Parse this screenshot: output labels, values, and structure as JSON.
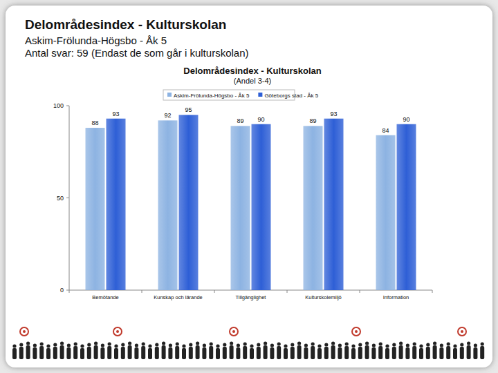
{
  "header": {
    "title": "Delområdesindex - Kulturskolan",
    "lines": [
      "Askim-Frölunda-Högsbo - Åk 5",
      "Antal svar: 59 (Endast de som går i kulturskolan)"
    ]
  },
  "chart_data": {
    "type": "bar",
    "title": "Delområdesindex - Kulturskolan",
    "subtitle": "(Andel 3-4)",
    "categories": [
      "Bemötande",
      "Kunskap och lärande",
      "Tillgänglighet",
      "Kulturskolemiljö",
      "Information"
    ],
    "series": [
      {
        "name": "Askim-Frölunda-Högsbo - Åk 5",
        "color": "#8db3e2",
        "values": [
          88,
          92,
          89,
          89,
          84
        ]
      },
      {
        "name": "Göteborgs stad - Åk 5",
        "color": "#2e5fd6",
        "values": [
          93,
          95,
          90,
          93,
          90
        ]
      }
    ],
    "ylim": [
      0,
      100
    ],
    "yticks": [
      0,
      50,
      100
    ],
    "grid": false,
    "legend": "top",
    "data_labels": true
  }
}
